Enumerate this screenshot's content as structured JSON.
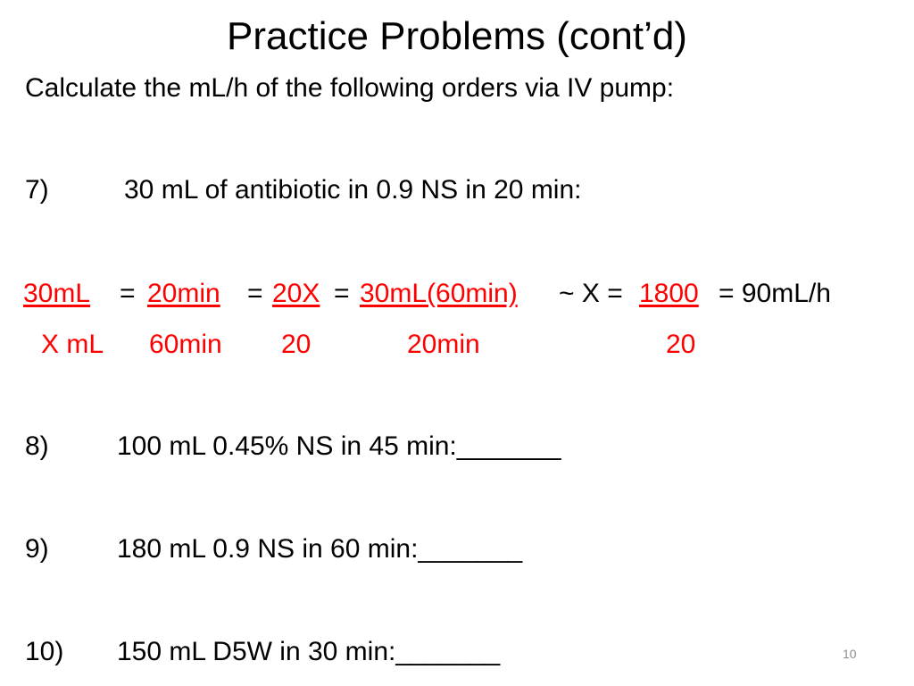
{
  "slide": {
    "title": "Practice Problems (cont’d)",
    "instruction": "Calculate the mL/h of the following orders via IV pump:",
    "problems": [
      {
        "number": "7)",
        "text": "30 mL of antibiotic in 0.9 NS in 20 min:"
      },
      {
        "number": "8)",
        "text": "100 mL 0.45% NS in 45 min:_______"
      },
      {
        "number": "9)",
        "text": "180 mL 0.9 NS in 60 min:_______"
      },
      {
        "number": "10)",
        "text": "150 mL D5W in 30 min:_______"
      }
    ],
    "solution": {
      "numerators": [
        " 30mL",
        "20min ",
        "20X",
        "30mL(60min)",
        "1800"
      ],
      "denominators": [
        "X mL",
        "60min",
        "20",
        "20min",
        "20"
      ],
      "operators": [
        "=",
        "=",
        "=",
        "~ X =",
        "= 90mL/h"
      ]
    },
    "slide_number": "10"
  },
  "colors": {
    "answer": "#ff0000",
    "text": "#000000"
  }
}
